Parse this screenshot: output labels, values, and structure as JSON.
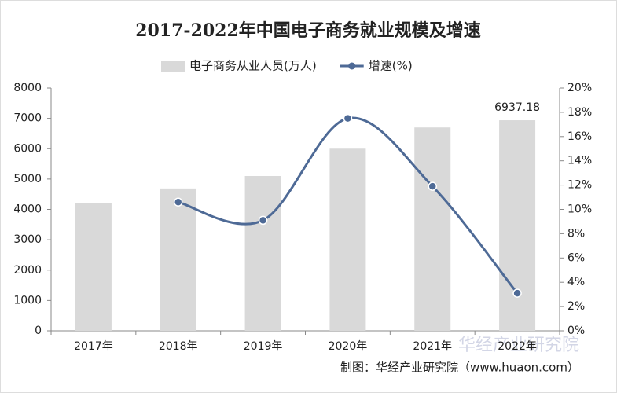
{
  "chart_data": {
    "type": "bar-line",
    "title": "2017-2022年中国电子商务就业规模及增速",
    "categories": [
      "2017年",
      "2018年",
      "2019年",
      "2020年",
      "2021年",
      "2022年"
    ],
    "series": [
      {
        "name": "电子商务从业人员(万人)",
        "type": "bar",
        "color": "#d9d9d9",
        "values": [
          4220,
          4690,
          5100,
          6000,
          6700,
          6937.18
        ],
        "value_labels": [
          null,
          null,
          null,
          null,
          null,
          "6937.18"
        ]
      },
      {
        "name": "增速(%)",
        "type": "line",
        "axis": "y2",
        "color": "#4e6a96",
        "values": [
          null,
          10.6,
          9.1,
          17.5,
          11.9,
          3.1
        ]
      }
    ],
    "ylim": [
      0,
      8000
    ],
    "yticks": [
      0,
      1000,
      2000,
      3000,
      4000,
      5000,
      6000,
      7000,
      8000
    ],
    "y2lim": [
      0,
      20
    ],
    "y2ticks": [
      {
        "value": 0,
        "label": "0%"
      },
      {
        "value": 2,
        "label": "2%"
      },
      {
        "value": 4,
        "label": "4%"
      },
      {
        "value": 6,
        "label": "6%"
      },
      {
        "value": 8,
        "label": "8%"
      },
      {
        "value": 10,
        "label": "10%"
      },
      {
        "value": 12,
        "label": "12%"
      },
      {
        "value": 14,
        "label": "14%"
      },
      {
        "value": 16,
        "label": "16%"
      },
      {
        "value": 18,
        "label": "18%"
      },
      {
        "value": 20,
        "label": "20%"
      }
    ],
    "legend": "top",
    "watermark": "华经产业研究院",
    "source": "制图：华经产业研究院（www.huaon.com）"
  }
}
